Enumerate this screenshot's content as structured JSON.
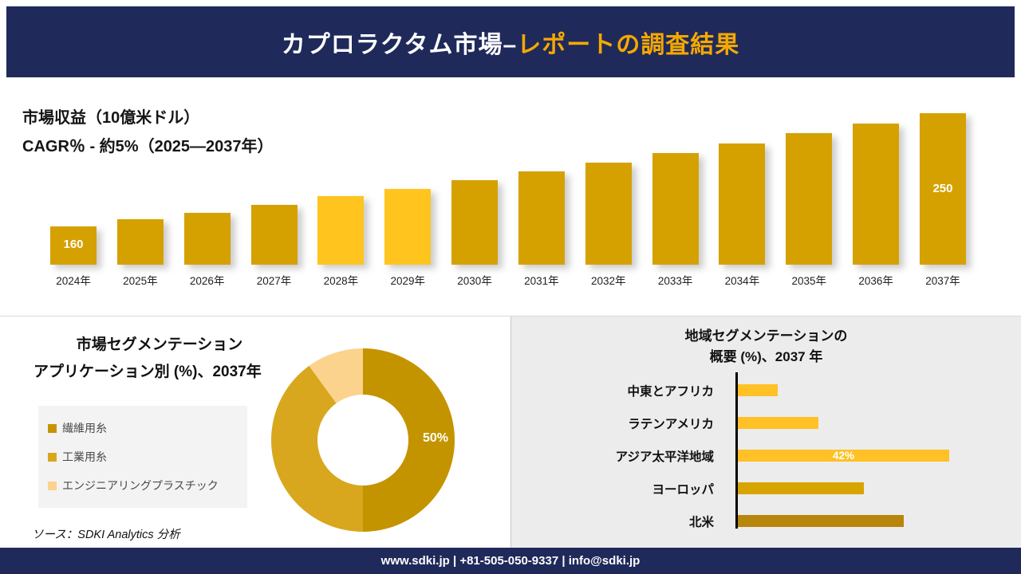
{
  "header": {
    "title_main": "カプロラクタム市場–",
    "title_accent": "レポートの調査結果"
  },
  "colors": {
    "navy": "#1F2A5A",
    "gold_accent": "#F6A800",
    "revenue_bar": "#D5A100",
    "revenue_bar_highlight": "#FFC41E",
    "donut": [
      "#C49400",
      "#D8A71E",
      "#FBD38D"
    ],
    "region_bars": [
      "#FFC125",
      "#FFC125",
      "#FFC125",
      "#D8A400",
      "#B8860B"
    ]
  },
  "chart_data": [
    {
      "type": "bar",
      "title": "市場収益（10億米ドル）",
      "subtitle": "CAGR％ - 約5%（2025―2037年）",
      "categories": [
        "2024年",
        "2025年",
        "2026年",
        "2027年",
        "2028年",
        "2029年",
        "2030年",
        "2031年",
        "2032年",
        "2033年",
        "2034年",
        "2035年",
        "2036年",
        "2037年"
      ],
      "values": [
        160,
        166,
        171,
        177,
        184,
        190,
        197,
        204,
        211,
        218,
        226,
        234,
        242,
        250
      ],
      "value_labels_shown": {
        "2024年": "160",
        "2037年": "250"
      },
      "highlight_indices": [
        4,
        5
      ]
    },
    {
      "type": "pie",
      "style": "donut",
      "title": "市場セグメンテーション",
      "subtitle": "アプリケーション別 (%)、2037年",
      "labels": [
        "繊維用糸",
        "工業用糸",
        "エンジニアリングプラスチック"
      ],
      "values": [
        50,
        40,
        10
      ],
      "shown_label": "50%",
      "legend_position": "left"
    },
    {
      "type": "bar",
      "orientation": "horizontal",
      "title_line1": "地域セグメンテーションの",
      "title_line2": "概要 (%)、2037 年",
      "categories": [
        "中東とアフリカ",
        "ラテンアメリカ",
        "アジア太平洋地域",
        "ヨーロッパ",
        "北米"
      ],
      "values": [
        8,
        16,
        42,
        25,
        33
      ],
      "labeled_category": "アジア太平洋地域",
      "shown_label": "42%"
    }
  ],
  "source": {
    "text": "ソース：SDKI Analytics 分析"
  },
  "footer": {
    "text": "www.sdki.jp | +81-505-050-9337 | info@sdki.jp"
  }
}
